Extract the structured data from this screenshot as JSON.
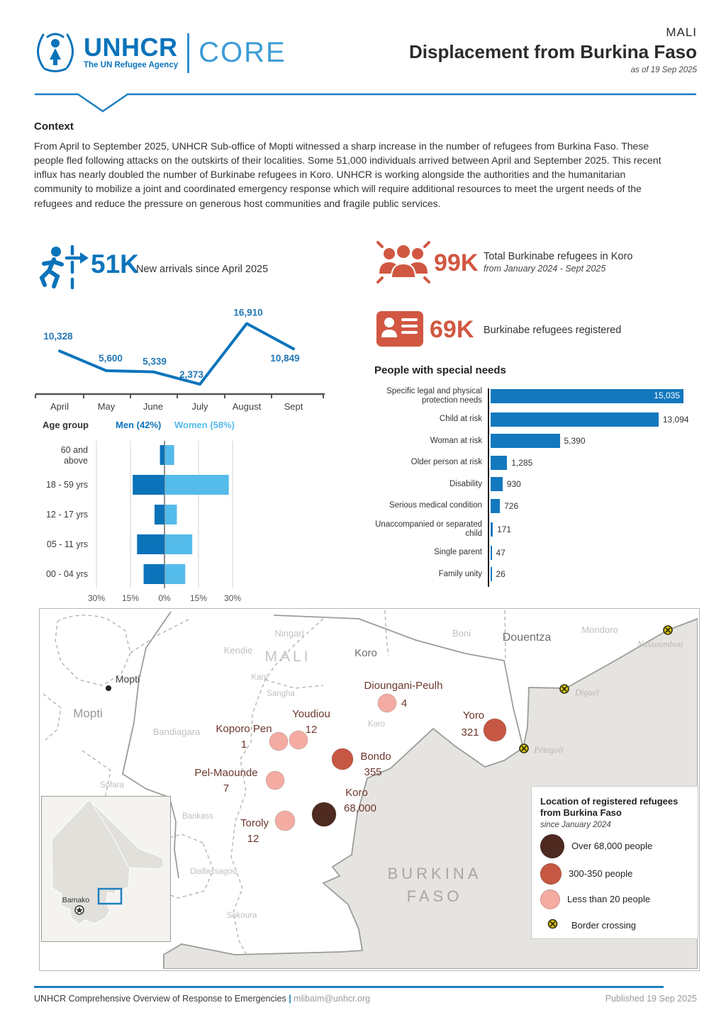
{
  "header": {
    "logo_title": "UNHCR",
    "logo_subtitle": "The UN Refugee Agency",
    "logo_core": "CORE",
    "country": "MALI",
    "title": "Displacement from Burkina Faso",
    "as_of": "as of 19 Sep 2025"
  },
  "context": {
    "heading": "Context",
    "body": "From April to September 2025, UNHCR Sub-office of Mopti witnessed a sharp increase in the number of refugees from Burkina Faso. These people fled following attacks on the outskirts of their localities. Some 51,000 individuals arrived between April and September 2025. This recent influx has nearly doubled the number of Burkinabe refugees in Koro. UNHCR is working alongside the authorities and the humanitarian community to mobilize a joint and coordinated emergency response which will require additional resources to meet the urgent needs of the refugees and reduce the pressure on generous host communities and fragile public services."
  },
  "stats": {
    "arrivals_value": "51K",
    "arrivals_label": "New arrivals since April 2025",
    "total_value": "99K",
    "total_label": "Total Burkinabe refugees in Koro",
    "total_sublabel": "from January 2024 - Sept 2025",
    "registered_value": "69K",
    "registered_label": "Burkinabe refugees registered"
  },
  "chart_data": [
    {
      "type": "line",
      "title": "New arrivals since April 2025",
      "categories": [
        "April",
        "May",
        "June",
        "July",
        "August",
        "Sept"
      ],
      "values": [
        10328,
        5600,
        5339,
        2373,
        16910,
        10849
      ],
      "value_labels": [
        "10,328",
        "5,600",
        "5,339",
        "2,373",
        "16,910",
        "10,849"
      ],
      "ylim": [
        0,
        17000
      ],
      "line_color": "#0C74BB"
    },
    {
      "type": "bar",
      "orientation": "horizontal",
      "title": "People with special needs",
      "categories": [
        "Specific legal and physical protection needs",
        "Child at risk",
        "Woman at risk",
        "Older person at risk",
        "Disability",
        "Serious medical condition",
        "Unaccompanied or separated child",
        "Single parent",
        "Family unity"
      ],
      "values": [
        15035,
        13094,
        5390,
        1285,
        930,
        726,
        171,
        47,
        26
      ],
      "value_labels": [
        "15,035",
        "13,094",
        "5,390",
        "1,285",
        "930",
        "726",
        "171",
        "47",
        "26"
      ],
      "bar_color": "#1478BE",
      "xlim": [
        0,
        16000
      ]
    },
    {
      "type": "bar",
      "subtype": "population-pyramid",
      "title": "Age group",
      "categories": [
        "60 and above",
        "18 - 59 yrs",
        "12 - 17 yrs",
        "05 - 11 yrs",
        "00 - 04 yrs"
      ],
      "series": [
        {
          "name": "Men (42%)",
          "values": [
            2,
            14,
            4.4,
            12.1,
            9.2
          ],
          "color": "#0B73BA"
        },
        {
          "name": "Women (58%)",
          "values": [
            4,
            28.1,
            5.2,
            12,
            8.9
          ],
          "color": "#55BBEA"
        }
      ],
      "axis_ticks": [
        "30%",
        "15%",
        "0%",
        "15%",
        "30%"
      ],
      "xlim": [
        -30,
        30
      ]
    }
  ],
  "map": {
    "country_label": "MALI",
    "neighbor_line1": "BURKINA",
    "neighbor_line2": "FASO",
    "city_label": "Mopti",
    "region_label": "Mopti",
    "district_douentza": "Douentza",
    "district_koro": "Koro",
    "minor_labels": [
      "Ningari",
      "Kendie",
      "Kani",
      "Sangha",
      "Bandiagara",
      "Sofara",
      "Bankass",
      "Diallassagou",
      "Sokoura",
      "Boni",
      "Mondoro",
      "Koro"
    ],
    "border_labels": [
      "Nassoumbou",
      "Diguel",
      "Pétegoli"
    ],
    "locations": [
      {
        "name": "Koporo Pen",
        "value": "1",
        "size": "small"
      },
      {
        "name": "Youdiou",
        "value": "12",
        "size": "small"
      },
      {
        "name": "Dioungani-Peulh",
        "value": "4",
        "size": "small"
      },
      {
        "name": "Yoro",
        "value": "321",
        "size": "medium"
      },
      {
        "name": "Bondo",
        "value": "355",
        "size": "medium"
      },
      {
        "name": "Koro",
        "value": "68,000",
        "size": "large"
      },
      {
        "name": "Pel-Maounde",
        "value": "7",
        "size": "small"
      },
      {
        "name": "Toroly",
        "value": "12",
        "size": "small"
      }
    ],
    "legend": {
      "title": "Location of registered refugees from Burkina Faso",
      "subtitle": "since January 2024",
      "items": [
        {
          "label": "Over 68,000 people",
          "color": "#4E2A20"
        },
        {
          "label": "300-350 people",
          "color": "#C65743"
        },
        {
          "label": "Less than 20 people",
          "color": "#F3ABA2"
        },
        {
          "label": "Border crossing",
          "color": "#D7C512"
        }
      ]
    },
    "inset": {
      "capital": "Bamako"
    }
  },
  "footer": {
    "left": "UNHCR Comprehensive Overview of Response to Emergencies",
    "separator": "|",
    "email": "mlibaim@unhcr.org",
    "right": "Published 19 Sep 2025"
  }
}
